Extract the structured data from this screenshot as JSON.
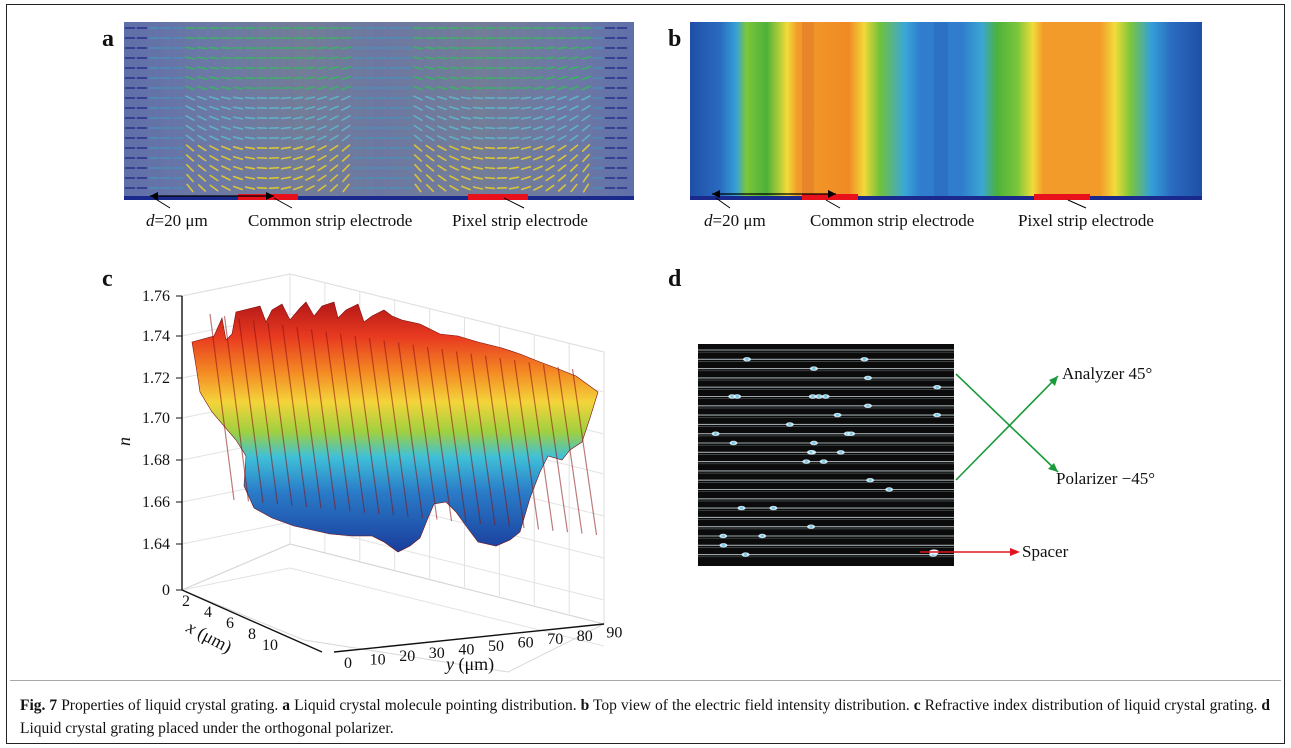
{
  "panels": {
    "a": {
      "label": "a",
      "labels": {
        "d_var": "d",
        "d_rest": "=20 μm",
        "common": "Common strip electrode",
        "pixel": "Pixel strip electrode"
      }
    },
    "b": {
      "label": "b",
      "labels": {
        "d_var": "d",
        "d_rest": "=20 μm",
        "common": "Common strip electrode",
        "pixel": "Pixel strip electrode"
      }
    },
    "c": {
      "label": "c",
      "ylabel_n": "n",
      "x_axis_var": "x",
      "x_axis_unit": " (μm)",
      "y_axis_var": "y",
      "y_axis_unit": " (μm)",
      "n_ticks": [
        "1.76",
        "1.74",
        "1.72",
        "1.70",
        "1.68",
        "1.66",
        "1.64",
        "0"
      ],
      "x_ticks": [
        "2",
        "4",
        "6",
        "8",
        "10"
      ],
      "y_ticks": [
        "0",
        "10",
        "20",
        "30",
        "40",
        "50",
        "60",
        "70",
        "80",
        "90"
      ]
    },
    "d": {
      "label": "d",
      "analyzer": "Analyzer 45°",
      "polarizer": "Polarizer −45°",
      "spacer": "Spacer"
    }
  },
  "colors": {
    "green_arrow": "#1a9a3a",
    "red_arrow": "#e0141e",
    "electrode_red": "#e8101a",
    "electrode_blue": "#1a2a8c"
  },
  "caption": {
    "fig": "Fig. 7",
    "intro": " Properties of liquid crystal grating. ",
    "a_label": "a",
    "a_text": " Liquid crystal molecule pointing distribution. ",
    "b_label": "b",
    "b_text": " Top view of the electric field intensity distribution. ",
    "c_label": "c",
    "c_text": " Refractive index distribution of liquid crystal grating. ",
    "d_label": "d",
    "d_text": " Liquid crystal grating placed under the orthogonal polarizer."
  }
}
